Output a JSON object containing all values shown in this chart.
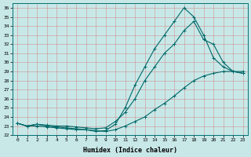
{
  "xlabel": "Humidex (Indice chaleur)",
  "bg_color": "#c8e8e8",
  "line_color": "#006868",
  "xlim": [
    -0.5,
    23.5
  ],
  "ylim": [
    22,
    36.5
  ],
  "xticks": [
    0,
    1,
    2,
    3,
    4,
    5,
    6,
    7,
    8,
    9,
    10,
    11,
    12,
    13,
    14,
    15,
    16,
    17,
    18,
    19,
    20,
    21,
    22,
    23
  ],
  "yticks": [
    22,
    23,
    24,
    25,
    26,
    27,
    28,
    29,
    30,
    31,
    32,
    33,
    34,
    35,
    36
  ],
  "line_top_x": [
    0,
    1,
    2,
    3,
    4,
    5,
    6,
    7,
    8,
    9,
    10,
    11,
    12,
    13,
    14,
    15,
    16,
    17,
    18,
    19,
    20,
    21,
    22,
    23
  ],
  "line_top_y": [
    23.3,
    23.0,
    23.2,
    23.0,
    22.9,
    22.8,
    22.7,
    22.6,
    22.4,
    22.5,
    23.2,
    25.0,
    27.5,
    29.5,
    31.5,
    33.0,
    34.5,
    36.0,
    35.0,
    33.0,
    30.5,
    29.5,
    29.0,
    28.8
  ],
  "line_mid_x": [
    0,
    1,
    2,
    3,
    4,
    5,
    6,
    7,
    8,
    9,
    10,
    11,
    12,
    13,
    14,
    15,
    16,
    17,
    18,
    19,
    20,
    21,
    22,
    23
  ],
  "line_mid_y": [
    23.3,
    23.0,
    23.2,
    23.1,
    23.0,
    23.0,
    22.9,
    22.8,
    22.7,
    22.8,
    23.5,
    24.5,
    26.0,
    28.0,
    29.5,
    31.0,
    32.0,
    33.5,
    34.5,
    32.5,
    32.0,
    30.0,
    29.0,
    28.8
  ],
  "line_bot_x": [
    0,
    1,
    2,
    3,
    4,
    5,
    6,
    7,
    8,
    9,
    10,
    11,
    12,
    13,
    14,
    15,
    16,
    17,
    18,
    19,
    20,
    21,
    22,
    23
  ],
  "line_bot_y": [
    23.3,
    23.0,
    23.0,
    22.9,
    22.8,
    22.7,
    22.6,
    22.6,
    22.5,
    22.4,
    22.6,
    23.0,
    23.5,
    24.0,
    24.8,
    25.5,
    26.3,
    27.2,
    28.0,
    28.5,
    28.8,
    29.0,
    29.0,
    29.0
  ]
}
